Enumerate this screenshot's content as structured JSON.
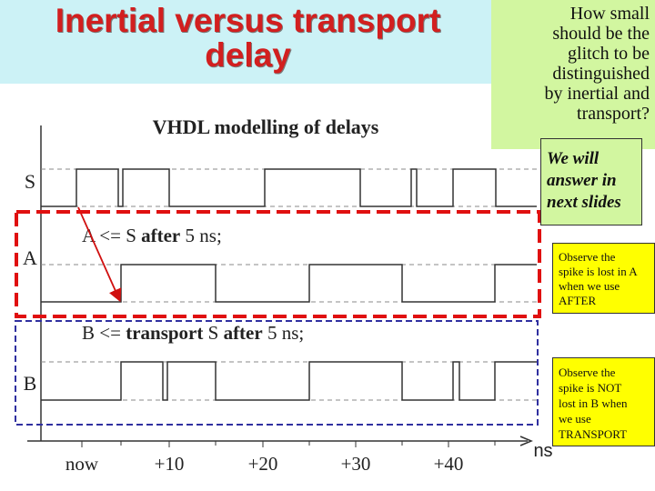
{
  "slide": {
    "title_line1": "Inertial versus transport",
    "title_line2": "delay"
  },
  "diagram": {
    "heading": "VHDL modelling of delays",
    "signals": [
      {
        "label": "S"
      },
      {
        "label": "A"
      },
      {
        "label": "B"
      }
    ],
    "statement_a": {
      "part1": "A <= S ",
      "keyword": "after",
      "part2": " 5 ns;"
    },
    "statement_b": {
      "part1": "B <= ",
      "keyword1": "transport",
      "part2": " S ",
      "keyword2": "after",
      "part3": " 5 ns;"
    },
    "axis": {
      "unit": "ns",
      "ticks": [
        "now",
        "+10",
        "+20",
        "+30",
        "+40"
      ]
    }
  },
  "notes": {
    "question_lines": [
      "How small",
      "should be the",
      "glitch to be",
      "distinguished",
      "by inertial and",
      "transport?"
    ],
    "answer_lines": [
      "We will",
      "answer in",
      "next slides"
    ],
    "inertial_lines": [
      "Observe the",
      "spike is lost in A",
      "when we use",
      "AFTER"
    ],
    "transport_lines": [
      "Observe the",
      "spike is NOT",
      "lost in B when",
      "we use",
      "TRANSPORT"
    ]
  },
  "colors": {
    "title": "#d21f1f",
    "title_band": "#ccf2f6",
    "note_green": "#d2f6a0",
    "note_yellow": "#ffff00",
    "inertial_box": "#e01010",
    "transport_box": "#3030a0",
    "arrow": "#d01010"
  }
}
